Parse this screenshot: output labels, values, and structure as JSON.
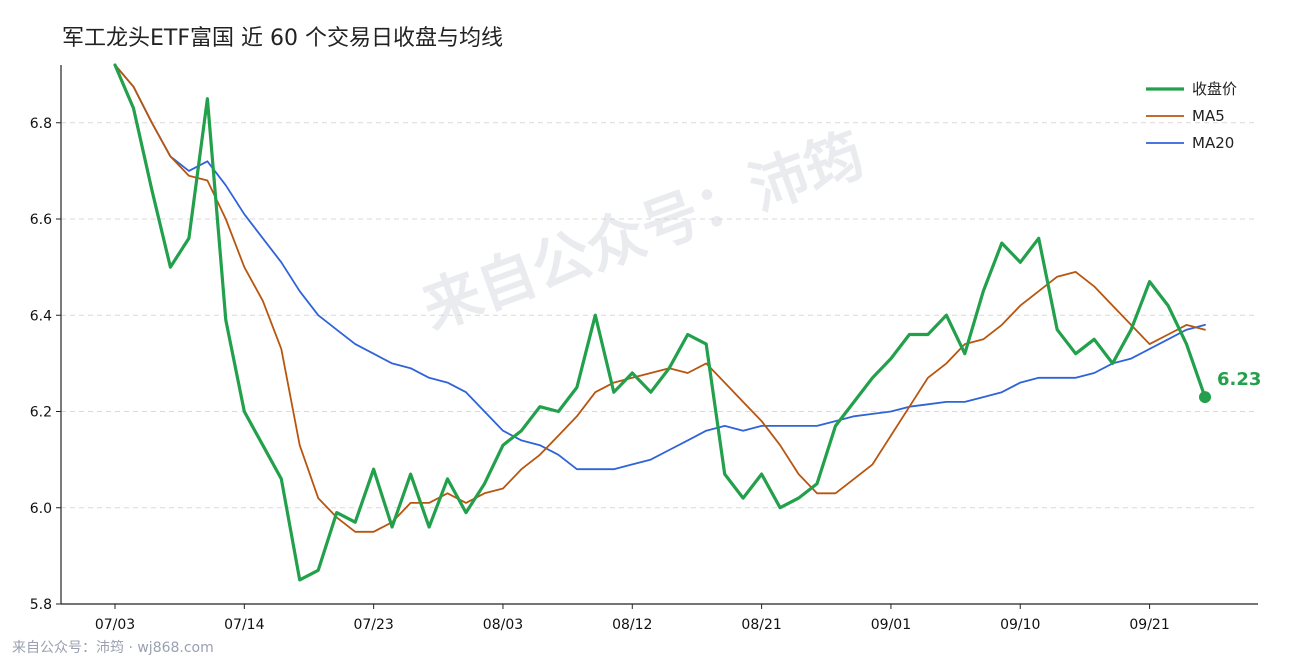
{
  "title": "军工龙头ETF富国 近 60 个交易日收盘与均线",
  "footer": "来自公众号：沛筠 · wj868.com",
  "watermark": "来自公众号：沛筠",
  "colors": {
    "close": "#22a04b",
    "ma5": "#b8560f",
    "ma20": "#2f63d8",
    "grid": "#d9d9d9",
    "watermark": "#cfd3dc"
  },
  "chart_data": {
    "type": "line",
    "title": "军工龙头ETF富国 近 60 个交易日收盘与均线",
    "xlabel": "",
    "ylabel": "",
    "ylim": [
      5.8,
      6.92
    ],
    "yticks": [
      5.8,
      6.0,
      6.2,
      6.4,
      6.6,
      6.8
    ],
    "ytick_labels": [
      "5.8",
      "6.0",
      "6.2",
      "6.4",
      "6.6",
      "6.8"
    ],
    "xtick_labels": [
      "07/03",
      "07/14",
      "07/23",
      "08/03",
      "08/12",
      "08/21",
      "09/01",
      "09/10",
      "09/21"
    ],
    "xtick_index": [
      0,
      7,
      14,
      21,
      28,
      35,
      42,
      49,
      56
    ],
    "grid": "horizontal-dashed",
    "legend_position": "top-right",
    "last_label": "6.23",
    "series": [
      {
        "name": "收盘价",
        "values": [
          6.92,
          6.83,
          6.66,
          6.5,
          6.56,
          6.85,
          6.39,
          6.2,
          6.13,
          6.06,
          5.85,
          5.87,
          5.99,
          5.97,
          6.08,
          5.96,
          6.07,
          5.96,
          6.06,
          5.99,
          6.05,
          6.13,
          6.16,
          6.21,
          6.2,
          6.25,
          6.4,
          6.24,
          6.28,
          6.24,
          6.29,
          6.36,
          6.34,
          6.07,
          6.02,
          6.07,
          6.0,
          6.02,
          6.05,
          6.17,
          6.22,
          6.27,
          6.31,
          6.36,
          6.36,
          6.4,
          6.32,
          6.45,
          6.55,
          6.51,
          6.56,
          6.37,
          6.32,
          6.35,
          6.3,
          6.37,
          6.47,
          6.42,
          6.34,
          6.23
        ]
      },
      {
        "name": "MA5",
        "values": [
          6.92,
          6.875,
          6.8,
          6.73,
          6.69,
          6.68,
          6.6,
          6.5,
          6.43,
          6.33,
          6.13,
          6.02,
          5.98,
          5.95,
          5.95,
          5.97,
          6.01,
          6.01,
          6.03,
          6.01,
          6.03,
          6.04,
          6.08,
          6.11,
          6.15,
          6.19,
          6.24,
          6.26,
          6.27,
          6.28,
          6.29,
          6.28,
          6.3,
          6.26,
          6.22,
          6.18,
          6.13,
          6.07,
          6.03,
          6.03,
          6.06,
          6.09,
          6.15,
          6.21,
          6.27,
          6.3,
          6.34,
          6.35,
          6.38,
          6.42,
          6.45,
          6.48,
          6.49,
          6.46,
          6.42,
          6.38,
          6.34,
          6.36,
          6.38,
          6.37
        ]
      },
      {
        "name": "MA20",
        "values": [
          6.92,
          6.875,
          6.8,
          6.73,
          6.7,
          6.72,
          6.67,
          6.61,
          6.56,
          6.51,
          6.45,
          6.4,
          6.37,
          6.34,
          6.32,
          6.3,
          6.29,
          6.27,
          6.26,
          6.24,
          6.2,
          6.16,
          6.14,
          6.13,
          6.11,
          6.08,
          6.08,
          6.08,
          6.09,
          6.1,
          6.12,
          6.14,
          6.16,
          6.17,
          6.16,
          6.17,
          6.17,
          6.17,
          6.17,
          6.18,
          6.19,
          6.195,
          6.2,
          6.21,
          6.215,
          6.22,
          6.22,
          6.23,
          6.24,
          6.26,
          6.27,
          6.27,
          6.27,
          6.28,
          6.3,
          6.31,
          6.33,
          6.35,
          6.37,
          6.38
        ]
      }
    ]
  }
}
